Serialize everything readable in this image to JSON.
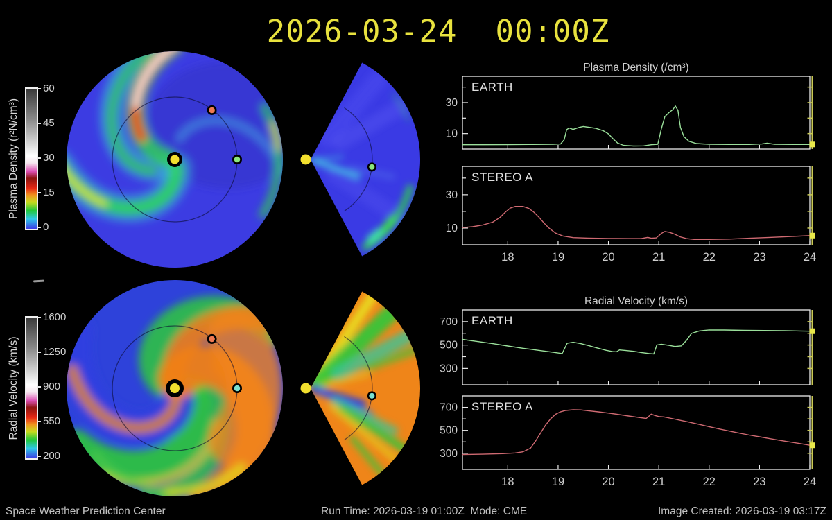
{
  "title": {
    "text": "2026-03-24  00:00Z",
    "color": "#e8e23e"
  },
  "footer": {
    "left": "Space Weather Prediction Center",
    "run": "Run Time: 2026-03-19 01:00Z  Mode: CME",
    "created": "Image Created: 2026-03-19 03:17Z"
  },
  "colorbars": [
    {
      "name": "plasma-density",
      "label": "Plasma Density (r²N/cm³)",
      "ticks": [
        "60",
        "45",
        "30",
        "15",
        "0"
      ]
    },
    {
      "name": "radial-velocity",
      "label": "Radial Velocity (km/s)",
      "ticks": [
        "1600",
        "1250",
        "900",
        "550",
        "200"
      ]
    }
  ],
  "map_markers": {
    "sun_color": "#f2df2e",
    "earth_color": "#8ce87c",
    "earth_color_velocity": "#7ae0cf",
    "stereo_a_color": "#ef7a52"
  },
  "chart_data": {
    "axis_color": "#ececec",
    "text_color": "#cfcfcf",
    "now_line_color": "#c9c955",
    "now_marker_color": "#e8e84a",
    "groups": [
      {
        "id": "charts-density",
        "type": "line",
        "title": "Plasma Density (/cm³)",
        "xlim": [
          17.1,
          24
        ],
        "xticks": [
          18,
          19,
          20,
          21,
          22,
          23,
          24
        ],
        "ylim": [
          0,
          47
        ],
        "yticks_major": [
          10,
          30
        ],
        "yticks_minor": [
          20,
          40
        ],
        "panels": [
          {
            "label": "EARTH",
            "color": "#9be09b",
            "points": [
              [
                17.1,
                2.8
              ],
              [
                17.5,
                2.8
              ],
              [
                18,
                2.9
              ],
              [
                18.5,
                3
              ],
              [
                18.9,
                3.1
              ],
              [
                19.05,
                3.3
              ],
              [
                19.12,
                6
              ],
              [
                19.17,
                12.6
              ],
              [
                19.22,
                13.6
              ],
              [
                19.3,
                12.7
              ],
              [
                19.42,
                14
              ],
              [
                19.5,
                14.6
              ],
              [
                19.6,
                14.1
              ],
              [
                19.75,
                13.4
              ],
              [
                19.9,
                11.8
              ],
              [
                20,
                9.8
              ],
              [
                20.08,
                7
              ],
              [
                20.18,
                4
              ],
              [
                20.3,
                2.4
              ],
              [
                20.5,
                2
              ],
              [
                20.7,
                2.1
              ],
              [
                20.85,
                2.8
              ],
              [
                20.98,
                3.1
              ],
              [
                21.05,
                13
              ],
              [
                21.12,
                21
              ],
              [
                21.2,
                23.5
              ],
              [
                21.28,
                25.5
              ],
              [
                21.33,
                27.8
              ],
              [
                21.38,
                25
              ],
              [
                21.43,
                14
              ],
              [
                21.5,
                8
              ],
              [
                21.6,
                5
              ],
              [
                21.75,
                3.6
              ],
              [
                22,
                3.1
              ],
              [
                22.4,
                3
              ],
              [
                22.8,
                3
              ],
              [
                23.05,
                3.3
              ],
              [
                23.15,
                3.8
              ],
              [
                23.3,
                3.1
              ],
              [
                23.7,
                3
              ],
              [
                24,
                3
              ]
            ]
          },
          {
            "label": "STEREO A",
            "color": "#cf6a72",
            "points": [
              [
                17.1,
                10.3
              ],
              [
                17.3,
                10.8
              ],
              [
                17.5,
                11.8
              ],
              [
                17.7,
                13.5
              ],
              [
                17.85,
                16.5
              ],
              [
                17.95,
                19.5
              ],
              [
                18.05,
                22
              ],
              [
                18.15,
                23
              ],
              [
                18.3,
                23
              ],
              [
                18.42,
                21.8
              ],
              [
                18.52,
                19.5
              ],
              [
                18.62,
                16.5
              ],
              [
                18.72,
                13
              ],
              [
                18.82,
                10
              ],
              [
                18.95,
                7
              ],
              [
                19.1,
                5.2
              ],
              [
                19.3,
                4.3
              ],
              [
                19.6,
                4
              ],
              [
                20,
                3.8
              ],
              [
                20.4,
                3.7
              ],
              [
                20.65,
                3.7
              ],
              [
                20.78,
                4.4
              ],
              [
                20.85,
                3.9
              ],
              [
                20.95,
                4.1
              ],
              [
                21.05,
                6.8
              ],
              [
                21.12,
                8
              ],
              [
                21.22,
                7.4
              ],
              [
                21.32,
                6.3
              ],
              [
                21.42,
                4.8
              ],
              [
                21.55,
                3.7
              ],
              [
                21.7,
                3.2
              ],
              [
                22,
                3.2
              ],
              [
                22.4,
                3.4
              ],
              [
                22.8,
                3.9
              ],
              [
                23.2,
                4.4
              ],
              [
                23.6,
                4.9
              ],
              [
                24,
                5.5
              ]
            ]
          }
        ]
      },
      {
        "id": "charts-velocity",
        "type": "line",
        "title": "Radial Velocity (km/s)",
        "xlim": [
          17.1,
          24
        ],
        "xticks": [
          18,
          19,
          20,
          21,
          22,
          23,
          24
        ],
        "ylim": [
          160,
          800
        ],
        "yticks_major": [
          300,
          500,
          700
        ],
        "yticks_minor": [
          400,
          600
        ],
        "panels": [
          {
            "label": "EARTH",
            "color": "#9be09b",
            "points": [
              [
                17.1,
                548
              ],
              [
                17.4,
                530
              ],
              [
                17.7,
                512
              ],
              [
                18,
                492
              ],
              [
                18.3,
                472
              ],
              [
                18.6,
                455
              ],
              [
                18.9,
                438
              ],
              [
                19.08,
                427
              ],
              [
                19.14,
                480
              ],
              [
                19.18,
                515
              ],
              [
                19.3,
                524
              ],
              [
                19.45,
                512
              ],
              [
                19.6,
                496
              ],
              [
                19.8,
                472
              ],
              [
                19.95,
                455
              ],
              [
                20.08,
                444
              ],
              [
                20.16,
                442
              ],
              [
                20.22,
                458
              ],
              [
                20.35,
                453
              ],
              [
                20.5,
                446
              ],
              [
                20.65,
                436
              ],
              [
                20.8,
                428
              ],
              [
                20.9,
                424
              ],
              [
                20.96,
                500
              ],
              [
                21.05,
                507
              ],
              [
                21.2,
                497
              ],
              [
                21.32,
                488
              ],
              [
                21.45,
                493
              ],
              [
                21.55,
                540
              ],
              [
                21.65,
                600
              ],
              [
                21.8,
                620
              ],
              [
                22,
                629
              ],
              [
                22.3,
                628
              ],
              [
                22.7,
                625
              ],
              [
                23.1,
                624
              ],
              [
                23.5,
                622
              ],
              [
                23.8,
                620
              ],
              [
                24,
                618
              ]
            ]
          },
          {
            "label": "STEREO A",
            "color": "#cf6a72",
            "points": [
              [
                17.1,
                289
              ],
              [
                17.5,
                292
              ],
              [
                17.9,
                297
              ],
              [
                18.15,
                303
              ],
              [
                18.3,
                313
              ],
              [
                18.45,
                345
              ],
              [
                18.55,
                405
              ],
              [
                18.65,
                475
              ],
              [
                18.75,
                545
              ],
              [
                18.85,
                600
              ],
              [
                18.95,
                640
              ],
              [
                19.05,
                662
              ],
              [
                19.15,
                673
              ],
              [
                19.3,
                679
              ],
              [
                19.45,
                678
              ],
              [
                19.6,
                671
              ],
              [
                19.8,
                661
              ],
              [
                20,
                650
              ],
              [
                20.2,
                638
              ],
              [
                20.4,
                625
              ],
              [
                20.6,
                612
              ],
              [
                20.75,
                604
              ],
              [
                20.8,
                622
              ],
              [
                20.85,
                641
              ],
              [
                20.92,
                630
              ],
              [
                21,
                620
              ],
              [
                21.1,
                617
              ],
              [
                21.25,
                604
              ],
              [
                21.4,
                590
              ],
              [
                21.6,
                572
              ],
              [
                21.8,
                552
              ],
              [
                22,
                532
              ],
              [
                22.2,
                512
              ],
              [
                22.4,
                494
              ],
              [
                22.6,
                476
              ],
              [
                22.8,
                459
              ],
              [
                23,
                444
              ],
              [
                23.2,
                428
              ],
              [
                23.4,
                413
              ],
              [
                23.6,
                399
              ],
              [
                23.8,
                385
              ],
              [
                24,
                370
              ]
            ]
          }
        ]
      }
    ]
  }
}
